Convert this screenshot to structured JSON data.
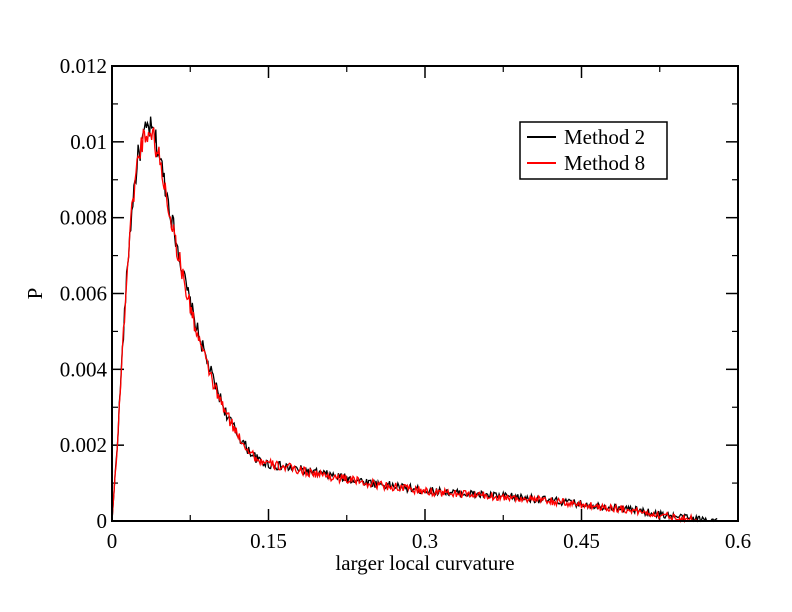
{
  "chart_data": {
    "type": "line",
    "title": "",
    "xlabel": "larger local curvature",
    "ylabel": "P",
    "xlim": [
      0,
      0.6
    ],
    "ylim": [
      0,
      0.012
    ],
    "xticks": [
      0,
      0.15,
      0.3,
      0.45,
      0.6
    ],
    "xtick_labels": [
      "0",
      "0.15",
      "0.3",
      "0.45",
      "0.6"
    ],
    "yticks": [
      0,
      0.002,
      0.004,
      0.006,
      0.008,
      0.01,
      0.012
    ],
    "ytick_labels": [
      "0",
      "0.002",
      "0.004",
      "0.006",
      "0.008",
      "0.01",
      "0.012"
    ],
    "grid": false,
    "legend_position": "top-right",
    "series": [
      {
        "name": "Method 2",
        "color": "#000000",
        "x": [
          0,
          0.005,
          0.01,
          0.015,
          0.02,
          0.025,
          0.03,
          0.035,
          0.04,
          0.045,
          0.05,
          0.055,
          0.06,
          0.07,
          0.08,
          0.09,
          0.1,
          0.11,
          0.12,
          0.13,
          0.14,
          0.15,
          0.17,
          0.2,
          0.25,
          0.3,
          0.35,
          0.4,
          0.45,
          0.5,
          0.52,
          0.54,
          0.56,
          0.58
        ],
        "y": [
          0,
          0.002,
          0.0045,
          0.0068,
          0.0085,
          0.0096,
          0.0101,
          0.0104,
          0.0102,
          0.0097,
          0.009,
          0.0083,
          0.0076,
          0.0063,
          0.0052,
          0.0043,
          0.0035,
          0.0028,
          0.0023,
          0.0019,
          0.0016,
          0.0015,
          0.0014,
          0.00125,
          0.001,
          0.0008,
          0.0007,
          0.0006,
          0.00045,
          0.0003,
          0.0002,
          0.00012,
          6e-05,
          2e-05
        ]
      },
      {
        "name": "Method 8",
        "color": "#ff0000",
        "x": [
          0,
          0.005,
          0.01,
          0.015,
          0.02,
          0.025,
          0.03,
          0.035,
          0.04,
          0.045,
          0.05,
          0.055,
          0.06,
          0.07,
          0.08,
          0.09,
          0.1,
          0.11,
          0.12,
          0.13,
          0.14,
          0.15,
          0.17,
          0.2,
          0.25,
          0.3,
          0.35,
          0.4,
          0.45,
          0.5,
          0.52,
          0.54,
          0.56
        ],
        "y": [
          0,
          0.002,
          0.0045,
          0.0068,
          0.0085,
          0.0096,
          0.0101,
          0.0103,
          0.0101,
          0.0096,
          0.0089,
          0.0082,
          0.0075,
          0.0062,
          0.0051,
          0.0042,
          0.0034,
          0.0028,
          0.0023,
          0.0019,
          0.0016,
          0.0015,
          0.0014,
          0.00122,
          0.00098,
          0.00078,
          0.00068,
          0.00058,
          0.00043,
          0.00028,
          0.00018,
          0.0001,
          4e-05
        ]
      }
    ]
  }
}
